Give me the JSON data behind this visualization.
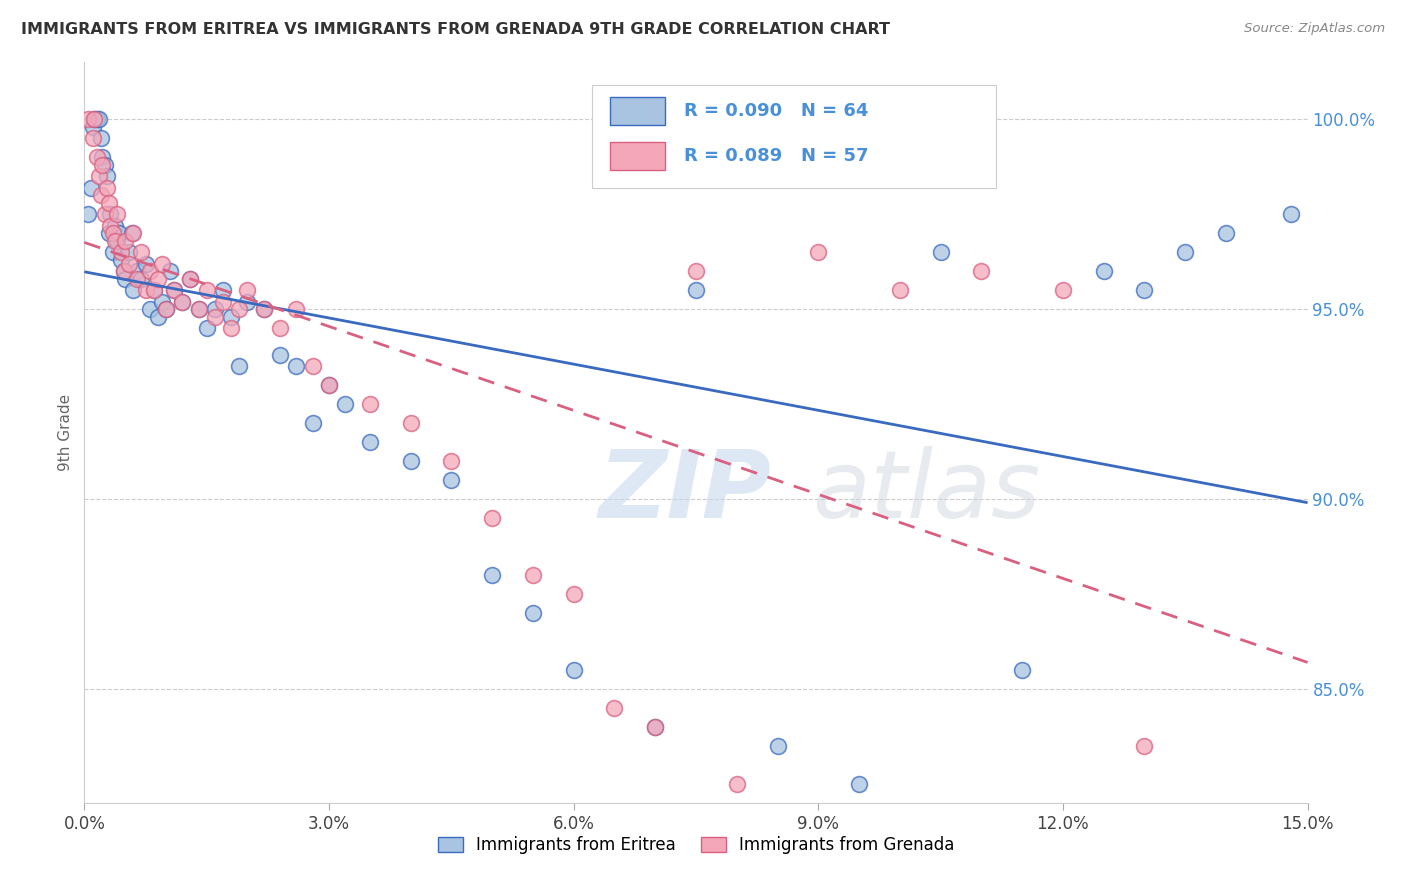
{
  "title": "IMMIGRANTS FROM ERITREA VS IMMIGRANTS FROM GRENADA 9TH GRADE CORRELATION CHART",
  "source": "Source: ZipAtlas.com",
  "ylabel": "9th Grade",
  "xlim": [
    0.0,
    15.0
  ],
  "ylim": [
    82.0,
    101.5
  ],
  "xticks": [
    0.0,
    3.0,
    6.0,
    9.0,
    12.0,
    15.0
  ],
  "xtick_labels": [
    "0.0%",
    "3.0%",
    "6.0%",
    "9.0%",
    "12.0%",
    "15.0%"
  ],
  "yticks": [
    85.0,
    90.0,
    95.0,
    100.0
  ],
  "ytick_labels": [
    "85.0%",
    "90.0%",
    "95.0%",
    "100.0%"
  ],
  "legend_labels": [
    "Immigrants from Eritrea",
    "Immigrants from Grenada"
  ],
  "R_eritrea": 0.09,
  "N_eritrea": 64,
  "R_grenada": 0.089,
  "N_grenada": 57,
  "color_eritrea": "#a8c4e0",
  "color_grenada": "#f4a7b9",
  "line_color_eritrea": "#3a6abf",
  "line_color_grenada": "#d96080",
  "background_color": "#ffffff",
  "watermark": "ZIPatlas",
  "eritrea_x": [
    0.05,
    0.08,
    0.1,
    0.12,
    0.15,
    0.18,
    0.2,
    0.22,
    0.25,
    0.28,
    0.3,
    0.32,
    0.35,
    0.38,
    0.4,
    0.42,
    0.45,
    0.48,
    0.5,
    0.55,
    0.58,
    0.6,
    0.65,
    0.7,
    0.75,
    0.8,
    0.85,
    0.9,
    0.95,
    1.0,
    1.05,
    1.1,
    1.2,
    1.3,
    1.4,
    1.5,
    1.6,
    1.7,
    1.8,
    1.9,
    2.0,
    2.2,
    2.4,
    2.6,
    2.8,
    3.0,
    3.2,
    3.5,
    4.0,
    4.5,
    5.0,
    5.5,
    6.0,
    7.0,
    7.5,
    8.5,
    9.5,
    10.5,
    11.5,
    12.5,
    13.0,
    13.5,
    14.0,
    14.8
  ],
  "eritrea_y": [
    97.5,
    98.2,
    99.8,
    100.0,
    100.0,
    100.0,
    99.5,
    99.0,
    98.8,
    98.5,
    97.0,
    97.5,
    96.5,
    97.2,
    96.8,
    97.0,
    96.3,
    96.0,
    95.8,
    96.5,
    97.0,
    95.5,
    96.0,
    95.8,
    96.2,
    95.0,
    95.5,
    94.8,
    95.2,
    95.0,
    96.0,
    95.5,
    95.2,
    95.8,
    95.0,
    94.5,
    95.0,
    95.5,
    94.8,
    93.5,
    95.2,
    95.0,
    93.8,
    93.5,
    92.0,
    93.0,
    92.5,
    91.5,
    91.0,
    90.5,
    88.0,
    87.0,
    85.5,
    84.0,
    95.5,
    83.5,
    82.5,
    96.5,
    85.5,
    96.0,
    95.5,
    96.5,
    97.0,
    97.5
  ],
  "grenada_x": [
    0.05,
    0.1,
    0.12,
    0.15,
    0.18,
    0.2,
    0.22,
    0.25,
    0.28,
    0.3,
    0.32,
    0.35,
    0.38,
    0.4,
    0.45,
    0.48,
    0.5,
    0.55,
    0.6,
    0.65,
    0.7,
    0.75,
    0.8,
    0.85,
    0.9,
    0.95,
    1.0,
    1.1,
    1.2,
    1.3,
    1.4,
    1.5,
    1.6,
    1.7,
    1.8,
    1.9,
    2.0,
    2.2,
    2.4,
    2.6,
    2.8,
    3.0,
    3.5,
    4.0,
    4.5,
    5.0,
    5.5,
    6.0,
    6.5,
    7.0,
    7.5,
    8.0,
    9.0,
    10.0,
    11.0,
    12.0,
    13.0
  ],
  "grenada_y": [
    100.0,
    99.5,
    100.0,
    99.0,
    98.5,
    98.0,
    98.8,
    97.5,
    98.2,
    97.8,
    97.2,
    97.0,
    96.8,
    97.5,
    96.5,
    96.0,
    96.8,
    96.2,
    97.0,
    95.8,
    96.5,
    95.5,
    96.0,
    95.5,
    95.8,
    96.2,
    95.0,
    95.5,
    95.2,
    95.8,
    95.0,
    95.5,
    94.8,
    95.2,
    94.5,
    95.0,
    95.5,
    95.0,
    94.5,
    95.0,
    93.5,
    93.0,
    92.5,
    92.0,
    91.0,
    89.5,
    88.0,
    87.5,
    84.5,
    84.0,
    96.0,
    82.5,
    96.5,
    95.5,
    96.0,
    95.5,
    83.5
  ]
}
